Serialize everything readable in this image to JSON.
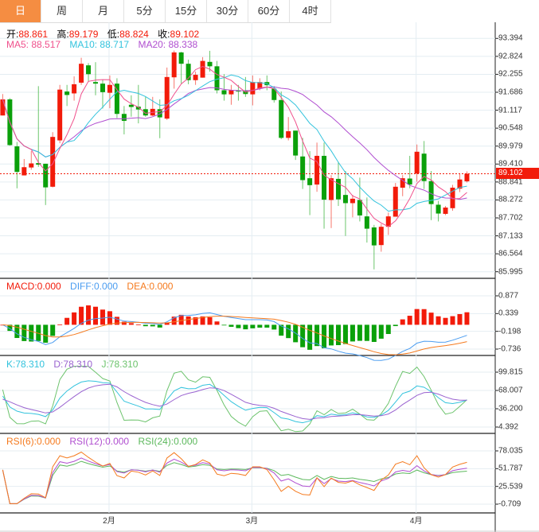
{
  "tabs": [
    {
      "label": "日",
      "active": true
    },
    {
      "label": "周"
    },
    {
      "label": "月"
    },
    {
      "label": "5分"
    },
    {
      "label": "15分"
    },
    {
      "label": "30分"
    },
    {
      "label": "60分"
    },
    {
      "label": "4时"
    }
  ],
  "ohlc_legend": {
    "open_label": "开:",
    "open": "88.861",
    "high_label": "高:",
    "high": "89.179",
    "low_label": "低:",
    "low": "88.824",
    "close_label": "收:",
    "close": "89.102"
  },
  "ma_legend": {
    "ma5": "MA5: 88.517",
    "ma10": "MA10: 88.717",
    "ma20": "MA20: 88.338"
  },
  "macd_legend": {
    "macd": "MACD:0.000",
    "diff": "DIFF:0.000",
    "dea": "DEA:0.000"
  },
  "kdj_legend": {
    "k": "K:78.310",
    "d": "D:78.310",
    "j": "J:78.310"
  },
  "rsi_legend": {
    "rsi6": "RSI(6):0.000",
    "rsi12": "RSI(12):0.000",
    "rsi24": "RSI(24):0.000"
  },
  "price_axis": [
    "93.394",
    "92.824",
    "92.255",
    "91.686",
    "91.117",
    "90.548",
    "89.979",
    "89.410",
    "88.841",
    "88.272",
    "87.702",
    "87.133",
    "86.564",
    "85.995"
  ],
  "current_price": "89.102",
  "macd_axis": [
    "0.877",
    "0.339",
    "-0.198",
    "-0.736"
  ],
  "kdj_axis": [
    "99.815",
    "68.007",
    "36.200",
    "4.392"
  ],
  "rsi_axis": [
    "78.035",
    "51.787",
    "25.539",
    "-0.709"
  ],
  "x_labels": [
    "2月",
    "3月",
    "4月"
  ],
  "colors": {
    "up": "#f21b0a",
    "down": "#0aa00a",
    "ma5": "#f0508c",
    "ma10": "#33c3dd",
    "ma20": "#b04ed0",
    "diff": "#4a9cf0",
    "dea": "#f57a1e",
    "accent": "#f58d42"
  },
  "chart_data": {
    "type": "candlestick",
    "ylim": [
      85.995,
      93.394
    ],
    "ohlc": [
      [
        90.95,
        91.63,
        90.95,
        91.46
      ],
      [
        91.46,
        91.5,
        89.99,
        90.01
      ],
      [
        89.97,
        90.11,
        88.64,
        89.16
      ],
      [
        89.05,
        89.57,
        89.05,
        89.31
      ],
      [
        89.3,
        89.82,
        89.23,
        89.43
      ],
      [
        89.44,
        91.88,
        89.32,
        89.39
      ],
      [
        89.42,
        89.42,
        88.11,
        88.67
      ],
      [
        88.69,
        90.42,
        88.67,
        90.27
      ],
      [
        90.16,
        91.92,
        90.07,
        91.77
      ],
      [
        91.71,
        91.92,
        91.25,
        91.6
      ],
      [
        91.65,
        92.19,
        91.42,
        91.94
      ],
      [
        91.99,
        92.78,
        91.92,
        92.59
      ],
      [
        92.54,
        92.61,
        92.01,
        92.26
      ],
      [
        92.01,
        92.64,
        91.59,
        91.96
      ],
      [
        91.96,
        92.09,
        91.17,
        91.69
      ],
      [
        91.67,
        92.22,
        91.18,
        91.92
      ],
      [
        91.96,
        92.13,
        90.87,
        91.0
      ],
      [
        91.0,
        91.25,
        90.35,
        90.78
      ],
      [
        91.29,
        91.59,
        90.91,
        91.22
      ],
      [
        91.23,
        91.92,
        90.7,
        91.14
      ],
      [
        91.15,
        91.54,
        90.91,
        90.95
      ],
      [
        90.95,
        91.54,
        90.93,
        91.16
      ],
      [
        91.15,
        91.46,
        90.23,
        90.89
      ],
      [
        90.85,
        92.47,
        90.81,
        92.17
      ],
      [
        92.16,
        93.01,
        91.8,
        92.95
      ],
      [
        92.95,
        92.97,
        91.96,
        92.59
      ],
      [
        92.59,
        92.72,
        91.94,
        92.07
      ],
      [
        92.07,
        92.34,
        91.92,
        92.24
      ],
      [
        92.15,
        92.8,
        92.15,
        92.68
      ],
      [
        92.65,
        93.0,
        92.34,
        92.51
      ],
      [
        92.51,
        92.68,
        91.65,
        91.75
      ],
      [
        91.75,
        92.26,
        91.42,
        91.62
      ],
      [
        91.62,
        91.92,
        91.29,
        91.75
      ],
      [
        91.75,
        91.92,
        91.42,
        91.71
      ],
      [
        91.75,
        92.17,
        91.54,
        91.63
      ],
      [
        91.62,
        92.22,
        91.27,
        92.01
      ],
      [
        91.8,
        92.13,
        91.75,
        92.01
      ],
      [
        92.01,
        92.22,
        91.75,
        91.91
      ],
      [
        91.8,
        91.88,
        91.36,
        91.44
      ],
      [
        91.44,
        91.71,
        90.2,
        90.24
      ],
      [
        90.24,
        90.9,
        90.16,
        90.45
      ],
      [
        90.47,
        90.47,
        89.54,
        89.68
      ],
      [
        89.65,
        90.24,
        88.62,
        88.9
      ],
      [
        88.96,
        89.82,
        87.79,
        88.74
      ],
      [
        88.76,
        90.09,
        88.53,
        89.67
      ],
      [
        89.67,
        90.09,
        87.36,
        88.28
      ],
      [
        88.27,
        89.06,
        87.38,
        88.96
      ],
      [
        88.94,
        89.48,
        88.08,
        88.29
      ],
      [
        88.43,
        89.19,
        87.13,
        88.17
      ],
      [
        88.17,
        88.43,
        87.72,
        88.31
      ],
      [
        88.27,
        88.98,
        87.59,
        87.78
      ],
      [
        87.75,
        88.35,
        86.92,
        87.36
      ],
      [
        87.4,
        87.48,
        86.07,
        86.83
      ],
      [
        86.84,
        87.51,
        86.63,
        87.42
      ],
      [
        87.42,
        87.87,
        87.16,
        87.75
      ],
      [
        87.74,
        88.81,
        87.74,
        88.69
      ],
      [
        88.66,
        89.06,
        88.39,
        88.96
      ],
      [
        88.95,
        89.67,
        88.64,
        88.76
      ],
      [
        89.11,
        90.03,
        88.85,
        89.8
      ],
      [
        89.74,
        90.14,
        88.62,
        88.87
      ],
      [
        88.87,
        89.19,
        87.63,
        88.14
      ],
      [
        88.12,
        88.24,
        87.59,
        87.84
      ],
      [
        87.83,
        88.08,
        87.79,
        88.03
      ],
      [
        88.01,
        88.75,
        87.93,
        88.66
      ],
      [
        88.63,
        89.11,
        88.52,
        88.92
      ],
      [
        88.861,
        89.179,
        88.824,
        89.102
      ]
    ],
    "month_starts": {
      "2月": 15,
      "3月": 35,
      "4月": 58
    },
    "indicators": [
      "MA5",
      "MA10",
      "MA20",
      "MACD(12,26,9)",
      "KDJ(9,3,3)",
      "RSI(6,12,24)"
    ]
  }
}
